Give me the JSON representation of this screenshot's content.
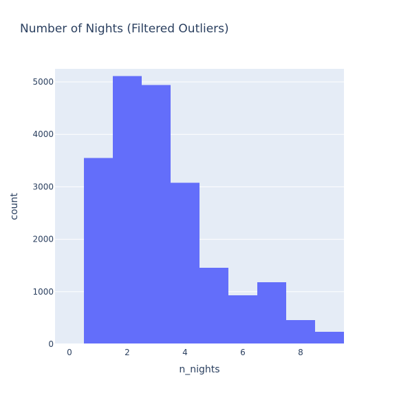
{
  "chart_data": {
    "type": "bar",
    "title": "Number of Nights (Filtered Outliers)",
    "xlabel": "n_nights",
    "ylabel": "count",
    "xlim": [
      -0.5,
      9.5
    ],
    "ylim": [
      0,
      5250
    ],
    "x_ticks": [
      0,
      2,
      4,
      6,
      8
    ],
    "y_ticks": [
      0,
      1000,
      2000,
      3000,
      4000,
      5000
    ],
    "grid": true,
    "bar_color": "#636efa",
    "plot_background": "#e5ecf6",
    "bins": [
      {
        "x": 0,
        "value": 0
      },
      {
        "x": 1,
        "value": 3550
      },
      {
        "x": 2,
        "value": 5110
      },
      {
        "x": 3,
        "value": 4940
      },
      {
        "x": 4,
        "value": 3080
      },
      {
        "x": 5,
        "value": 1460
      },
      {
        "x": 6,
        "value": 930
      },
      {
        "x": 7,
        "value": 1180
      },
      {
        "x": 8,
        "value": 460
      },
      {
        "x": 9,
        "value": 235
      }
    ]
  }
}
